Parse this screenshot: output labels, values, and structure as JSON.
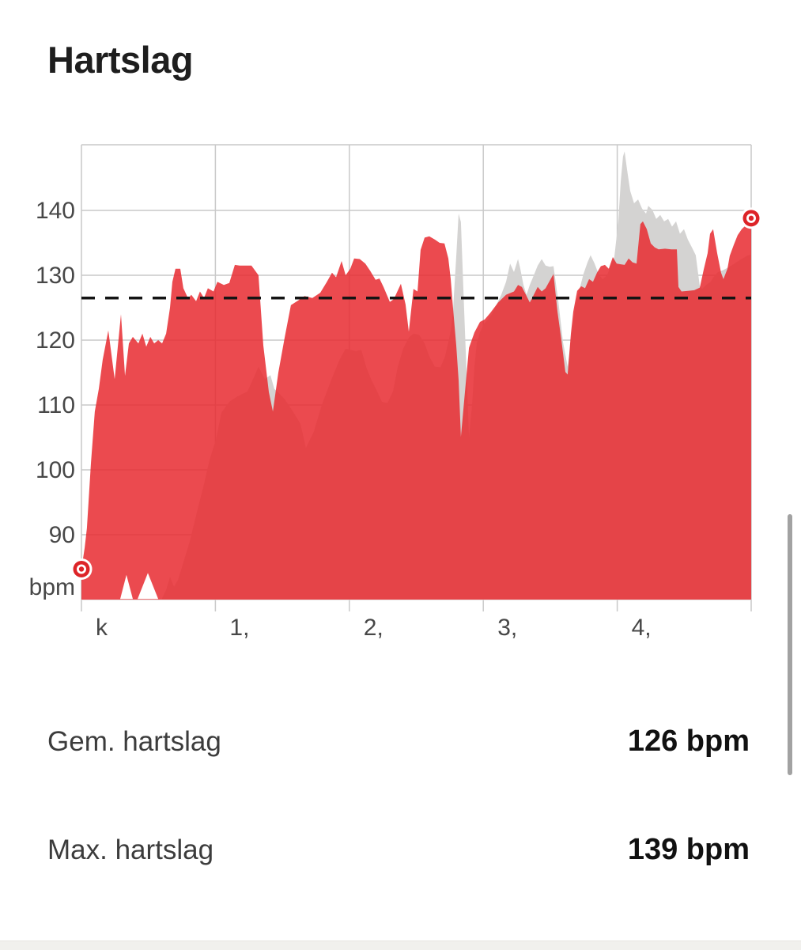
{
  "page": {
    "title": "Hartslag"
  },
  "chart_data": {
    "type": "area",
    "title": "Hartslag",
    "ylabel": "bpm",
    "yticks": [
      140,
      130,
      120,
      110,
      100,
      90
    ],
    "xtick_labels": [
      "k",
      "1,",
      "2,",
      "3,",
      "4,"
    ],
    "xlim": [
      0,
      5
    ],
    "ylim": [
      80,
      150
    ],
    "grid": true,
    "legend_position": "none",
    "avg_line_bpm": 126.5,
    "colors": {
      "heart_rate_fill": "rgba(232,42,48,0.85)",
      "comparison_fill": "#d4d3d2",
      "grid_line": "#c9c9c9",
      "avg_dash_line": "#141414",
      "marker_red": "#dd2428",
      "axis_text": "#474747"
    },
    "series": [
      {
        "name": "comparison-effort",
        "points": [
          [
            0.602,
            80.2
          ],
          [
            0.632,
            81.5
          ],
          [
            0.661,
            83.5
          ],
          [
            0.691,
            82.0
          ],
          [
            0.72,
            83.0
          ],
          [
            0.75,
            85.0
          ],
          [
            0.779,
            87.0
          ],
          [
            0.809,
            89.0
          ],
          [
            0.838,
            91.5
          ],
          [
            0.868,
            94.0
          ],
          [
            0.909,
            97.3
          ],
          [
            0.956,
            101.5
          ],
          [
            1.004,
            104.7
          ],
          [
            1.045,
            108.8
          ],
          [
            1.104,
            110.5
          ],
          [
            1.163,
            111.3
          ],
          [
            1.24,
            112.1
          ],
          [
            1.322,
            115.9
          ],
          [
            1.37,
            114.0
          ],
          [
            1.411,
            114.6
          ],
          [
            1.44,
            112.5
          ],
          [
            1.476,
            111.8
          ],
          [
            1.517,
            110.9
          ],
          [
            1.576,
            109.1
          ],
          [
            1.635,
            107.1
          ],
          [
            1.676,
            103.4
          ],
          [
            1.735,
            105.9
          ],
          [
            1.794,
            110.0
          ],
          [
            1.871,
            114.2
          ],
          [
            1.93,
            117.1
          ],
          [
            1.972,
            118.7
          ],
          [
            2.048,
            118.3
          ],
          [
            2.09,
            118.5
          ],
          [
            2.125,
            115.9
          ],
          [
            2.166,
            113.8
          ],
          [
            2.208,
            112.1
          ],
          [
            2.243,
            110.5
          ],
          [
            2.284,
            110.3
          ],
          [
            2.326,
            112.1
          ],
          [
            2.361,
            115.9
          ],
          [
            2.402,
            118.7
          ],
          [
            2.444,
            120.4
          ],
          [
            2.479,
            121.0
          ],
          [
            2.521,
            120.8
          ],
          [
            2.562,
            119.5
          ],
          [
            2.597,
            117.5
          ],
          [
            2.639,
            115.9
          ],
          [
            2.68,
            115.8
          ],
          [
            2.715,
            117.5
          ],
          [
            2.757,
            121.4
          ],
          [
            2.774,
            124.6
          ],
          [
            2.798,
            132.9
          ],
          [
            2.816,
            139.5
          ],
          [
            2.833,
            138.2
          ],
          [
            2.845,
            131.6
          ],
          [
            2.857,
            124.6
          ],
          [
            2.869,
            118.3
          ],
          [
            2.881,
            112.1
          ],
          [
            2.893,
            105.0
          ],
          [
            2.916,
            110.0
          ],
          [
            2.934,
            115.9
          ],
          [
            2.951,
            119.5
          ],
          [
            2.975,
            121.2
          ],
          [
            3.005,
            122.5
          ],
          [
            3.034,
            123.2
          ],
          [
            3.064,
            124.0
          ],
          [
            3.099,
            125.5
          ],
          [
            3.134,
            127.0
          ],
          [
            3.17,
            129.0
          ],
          [
            3.2,
            131.8
          ],
          [
            3.229,
            130.5
          ],
          [
            3.259,
            132.5
          ],
          [
            3.276,
            131.0
          ],
          [
            3.3,
            128.5
          ],
          [
            3.323,
            127.0
          ],
          [
            3.347,
            128.5
          ],
          [
            3.377,
            130.0
          ],
          [
            3.406,
            131.5
          ],
          [
            3.436,
            132.5
          ],
          [
            3.465,
            131.5
          ],
          [
            3.495,
            131.3
          ],
          [
            3.524,
            131.4
          ],
          [
            3.56,
            126.0
          ],
          [
            3.595,
            119.7
          ],
          [
            3.63,
            115.9
          ],
          [
            3.666,
            122.0
          ],
          [
            3.689,
            125.6
          ],
          [
            3.719,
            127.9
          ],
          [
            3.748,
            130.2
          ],
          [
            3.778,
            132.0
          ],
          [
            3.801,
            133.1
          ],
          [
            3.831,
            131.8
          ],
          [
            3.86,
            130.2
          ],
          [
            3.89,
            129.4
          ],
          [
            3.925,
            130.0
          ],
          [
            3.949,
            131.5
          ],
          [
            3.978,
            132.8
          ],
          [
            4.008,
            138.3
          ],
          [
            4.026,
            144.4
          ],
          [
            4.043,
            148.3
          ],
          [
            4.055,
            149.1
          ],
          [
            4.073,
            146.3
          ],
          [
            4.097,
            143.0
          ],
          [
            4.126,
            141.1
          ],
          [
            4.156,
            141.7
          ],
          [
            4.185,
            140.3
          ],
          [
            4.215,
            139.5
          ],
          [
            4.232,
            140.7
          ],
          [
            4.262,
            140.1
          ],
          [
            4.291,
            138.7
          ],
          [
            4.321,
            139.3
          ],
          [
            4.35,
            138.3
          ],
          [
            4.38,
            138.7
          ],
          [
            4.409,
            137.5
          ],
          [
            4.439,
            138.3
          ],
          [
            4.468,
            136.4
          ],
          [
            4.498,
            137.1
          ],
          [
            4.527,
            135.5
          ],
          [
            4.557,
            134.3
          ],
          [
            4.586,
            133.1
          ],
          [
            4.616,
            128.3
          ],
          [
            4.634,
            127.9
          ],
          [
            4.663,
            128.5
          ],
          [
            4.693,
            128.9
          ],
          [
            4.722,
            129.8
          ],
          [
            4.752,
            130.5
          ],
          [
            4.793,
            130.8
          ],
          [
            4.852,
            131.5
          ],
          [
            4.911,
            132.3
          ],
          [
            4.97,
            133.0
          ],
          [
            5.0,
            133.2
          ]
        ]
      },
      {
        "name": "heart-rate",
        "points": [
          [
            0.0,
            84.7
          ],
          [
            0.024,
            88.0
          ],
          [
            0.041,
            91.0
          ],
          [
            0.071,
            101.0
          ],
          [
            0.1,
            109.0
          ],
          [
            0.13,
            112.5
          ],
          [
            0.159,
            117.0
          ],
          [
            0.201,
            121.5
          ],
          [
            0.248,
            114.0
          ],
          [
            0.295,
            124.0
          ],
          [
            0.325,
            114.5
          ],
          [
            0.354,
            119.5
          ],
          [
            0.384,
            120.5
          ],
          [
            0.425,
            119.5
          ],
          [
            0.455,
            121.0
          ],
          [
            0.484,
            119.0
          ],
          [
            0.514,
            120.5
          ],
          [
            0.543,
            119.5
          ],
          [
            0.573,
            120.0
          ],
          [
            0.602,
            119.5
          ],
          [
            0.632,
            121.0
          ],
          [
            0.661,
            125.0
          ],
          [
            0.679,
            129.0
          ],
          [
            0.702,
            131.0
          ],
          [
            0.738,
            131.0
          ],
          [
            0.761,
            128.0
          ],
          [
            0.797,
            126.4
          ],
          [
            0.82,
            127.0
          ],
          [
            0.856,
            126.0
          ],
          [
            0.885,
            127.5
          ],
          [
            0.915,
            126.5
          ],
          [
            0.944,
            128.0
          ],
          [
            0.986,
            127.5
          ],
          [
            1.015,
            129.0
          ],
          [
            1.063,
            128.5
          ],
          [
            1.104,
            128.8
          ],
          [
            1.145,
            131.6
          ],
          [
            1.181,
            131.5
          ],
          [
            1.222,
            131.5
          ],
          [
            1.269,
            131.5
          ],
          [
            1.322,
            130.0
          ],
          [
            1.358,
            119.2
          ],
          [
            1.399,
            112.0
          ],
          [
            1.429,
            109.0
          ],
          [
            1.47,
            115.0
          ],
          [
            1.517,
            120.4
          ],
          [
            1.564,
            125.4
          ],
          [
            1.617,
            126.1
          ],
          [
            1.665,
            126.8
          ],
          [
            1.724,
            126.5
          ],
          [
            1.783,
            127.3
          ],
          [
            1.83,
            128.9
          ],
          [
            1.871,
            130.4
          ],
          [
            1.901,
            129.7
          ],
          [
            1.942,
            132.2
          ],
          [
            1.972,
            130.0
          ],
          [
            2.007,
            131.0
          ],
          [
            2.036,
            132.6
          ],
          [
            2.078,
            132.5
          ],
          [
            2.119,
            131.8
          ],
          [
            2.155,
            130.7
          ],
          [
            2.196,
            129.3
          ],
          [
            2.225,
            129.5
          ],
          [
            2.255,
            128.2
          ],
          [
            2.302,
            125.9
          ],
          [
            2.332,
            126.3
          ],
          [
            2.385,
            128.7
          ],
          [
            2.42,
            125.5
          ],
          [
            2.444,
            121.3
          ],
          [
            2.479,
            127.9
          ],
          [
            2.509,
            127.5
          ],
          [
            2.532,
            133.9
          ],
          [
            2.562,
            135.8
          ],
          [
            2.597,
            136.0
          ],
          [
            2.639,
            135.5
          ],
          [
            2.674,
            135.0
          ],
          [
            2.71,
            134.9
          ],
          [
            2.739,
            132.6
          ],
          [
            2.757,
            129.4
          ],
          [
            2.774,
            125.0
          ],
          [
            2.798,
            119.2
          ],
          [
            2.816,
            113.8
          ],
          [
            2.833,
            105.1
          ],
          [
            2.863,
            112.0
          ],
          [
            2.893,
            118.8
          ],
          [
            2.934,
            121.2
          ],
          [
            2.975,
            122.8
          ],
          [
            3.011,
            123.2
          ],
          [
            3.052,
            124.2
          ],
          [
            3.111,
            125.8
          ],
          [
            3.17,
            127.0
          ],
          [
            3.229,
            127.5
          ],
          [
            3.259,
            128.5
          ],
          [
            3.288,
            128.2
          ],
          [
            3.318,
            127.0
          ],
          [
            3.347,
            125.8
          ],
          [
            3.377,
            127.0
          ],
          [
            3.406,
            128.2
          ],
          [
            3.436,
            127.5
          ],
          [
            3.465,
            128.0
          ],
          [
            3.524,
            130.2
          ],
          [
            3.554,
            124.4
          ],
          [
            3.583,
            120.0
          ],
          [
            3.613,
            115.1
          ],
          [
            3.63,
            114.7
          ],
          [
            3.654,
            121.0
          ],
          [
            3.672,
            124.4
          ],
          [
            3.701,
            127.6
          ],
          [
            3.731,
            128.3
          ],
          [
            3.76,
            128.0
          ],
          [
            3.79,
            129.4
          ],
          [
            3.819,
            129.0
          ],
          [
            3.849,
            130.4
          ],
          [
            3.878,
            131.4
          ],
          [
            3.908,
            131.6
          ],
          [
            3.937,
            131.0
          ],
          [
            3.967,
            132.8
          ],
          [
            3.996,
            131.8
          ],
          [
            4.026,
            131.7
          ],
          [
            4.055,
            131.6
          ],
          [
            4.085,
            132.6
          ],
          [
            4.114,
            132.0
          ],
          [
            4.144,
            131.8
          ],
          [
            4.173,
            137.9
          ],
          [
            4.191,
            138.3
          ],
          [
            4.221,
            137.1
          ],
          [
            4.25,
            134.9
          ],
          [
            4.28,
            134.3
          ],
          [
            4.309,
            134.0
          ],
          [
            4.356,
            134.1
          ],
          [
            4.404,
            134.0
          ],
          [
            4.445,
            134.0
          ],
          [
            4.457,
            128.2
          ],
          [
            4.48,
            127.5
          ],
          [
            4.527,
            127.6
          ],
          [
            4.575,
            127.7
          ],
          [
            4.616,
            128.1
          ],
          [
            4.646,
            130.9
          ],
          [
            4.675,
            133.4
          ],
          [
            4.693,
            136.4
          ],
          [
            4.716,
            137.1
          ],
          [
            4.746,
            133.4
          ],
          [
            4.775,
            130.4
          ],
          [
            4.793,
            129.4
          ],
          [
            4.823,
            131.0
          ],
          [
            4.84,
            133.0
          ],
          [
            4.87,
            134.7
          ],
          [
            4.899,
            136.2
          ],
          [
            4.929,
            137.1
          ],
          [
            4.97,
            137.9
          ],
          [
            5.0,
            138.8
          ]
        ]
      }
    ],
    "endpoint_markers": [
      {
        "x": 0.0,
        "bpm": 84.7
      },
      {
        "x": 5.0,
        "bpm": 138.8
      }
    ],
    "baseline_notches": [
      [
        [
          0.289,
          80.1
        ],
        [
          0.336,
          83.8
        ],
        [
          0.384,
          80.1
        ]
      ],
      [
        [
          0.419,
          80.1
        ],
        [
          0.496,
          84.1
        ],
        [
          0.573,
          80.1
        ]
      ]
    ]
  },
  "stats": {
    "rows": [
      {
        "label": "Gem. hartslag",
        "value": "126 bpm"
      },
      {
        "label": "Max. hartslag",
        "value": "139 bpm"
      }
    ]
  }
}
